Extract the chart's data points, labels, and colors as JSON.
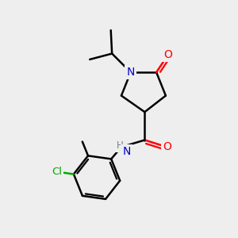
{
  "background_color": "#eeeeee",
  "atom_colors": {
    "C": "#000000",
    "N": "#0000cc",
    "O": "#ff0000",
    "Cl": "#00aa00",
    "H": "#708090"
  },
  "bond_color": "#000000",
  "bond_width": 1.8,
  "font_size_atoms": 10
}
